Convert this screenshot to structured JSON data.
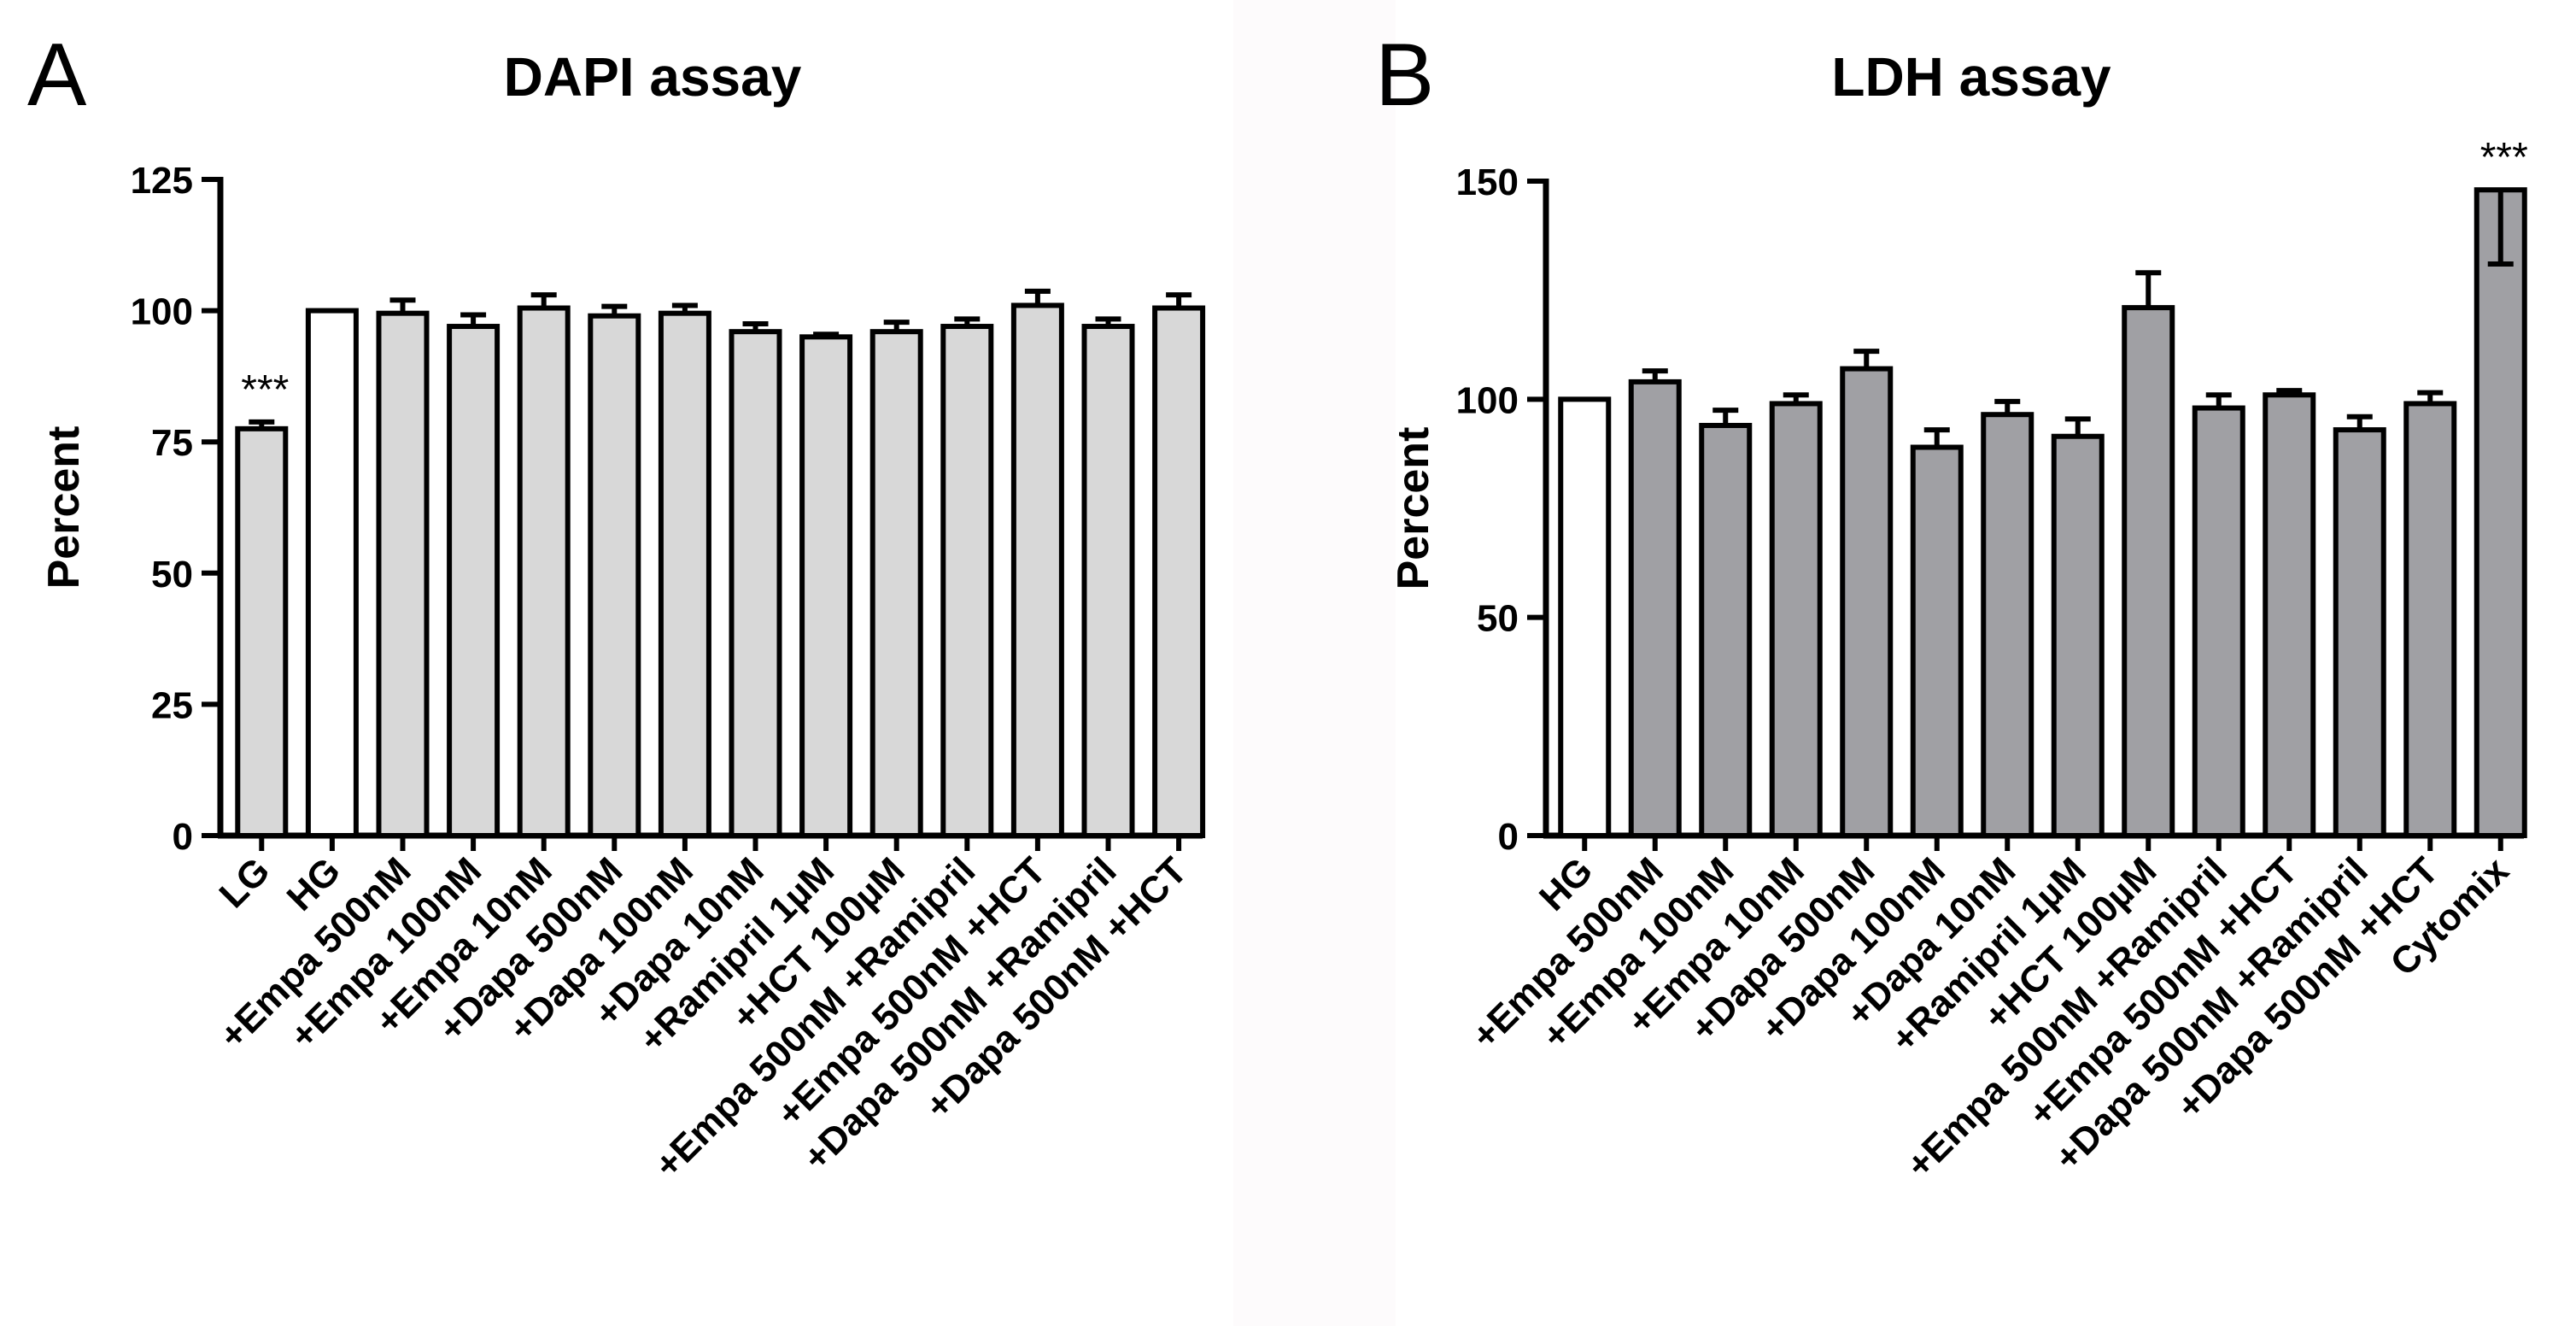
{
  "panels": {
    "a": {
      "letter": "A"
    },
    "b": {
      "letter": "B"
    }
  },
  "colors": {
    "bar_fill_a": "#d8d8d8",
    "bar_fill_b": "#a0a0a4",
    "control_fill": "#ffffff",
    "stroke": "#000000"
  },
  "chart_data": [
    {
      "id": "dapi",
      "type": "bar",
      "title": "DAPI assay",
      "xlabel": "",
      "ylabel": "Percent",
      "ylim": [
        0,
        125
      ],
      "yticks": [
        0,
        25,
        50,
        75,
        100,
        125
      ],
      "grid": false,
      "categories": [
        "LG",
        "HG",
        "+Empa 500nM",
        "+Empa 100nM",
        "+Empa 10nM",
        "+Dapa 500nM",
        "+Dapa 100nM",
        "+Dapa 10nM",
        "+Ramipril 1µM",
        "+HCT 100µM",
        "+Empa 500nM +Ramipril",
        "+Empa 500nM +HCT",
        "+Dapa 500nM +Ramipril",
        "+Dapa 500nM +HCT"
      ],
      "values": [
        77.5,
        100,
        99.5,
        97,
        100.5,
        99,
        99.5,
        96,
        95,
        96,
        97,
        101,
        97,
        100.5
      ],
      "errors": [
        1.3,
        0,
        2.5,
        2.2,
        2.5,
        1.8,
        1.5,
        1.5,
        0.5,
        1.8,
        1.4,
        2.7,
        1.4,
        2.5
      ],
      "control_index": 1,
      "annotations": [
        {
          "category": "LG",
          "text": "***"
        }
      ]
    },
    {
      "id": "ldh",
      "type": "bar",
      "title": "LDH assay",
      "xlabel": "",
      "ylabel": "Percent",
      "ylim": [
        0,
        150
      ],
      "yticks": [
        0,
        50,
        100,
        150
      ],
      "grid": false,
      "categories": [
        "HG",
        "+Empa 500nM",
        "+Empa 100nM",
        "+Empa 10nM",
        "+Dapa 500nM",
        "+Dapa 100nM",
        "+Dapa 10nM",
        "+Ramipril 1µM",
        "+HCT 100µM",
        "+Empa 500nM +Ramipril",
        "+Empa 500nM +HCT",
        "+Dapa 500nM +Ramipril",
        "+Dapa 500nM +HCT",
        "Cytomix"
      ],
      "values": [
        100,
        104,
        94,
        99,
        107,
        89,
        96.5,
        91.5,
        121,
        98,
        101,
        93,
        99,
        148
      ],
      "errors": [
        0,
        2.5,
        3.5,
        2,
        4,
        4,
        3,
        4,
        8,
        3,
        1,
        3,
        2.5,
        17
      ],
      "error_directions": [
        "up",
        "up",
        "up",
        "up",
        "up",
        "up",
        "up",
        "up",
        "up",
        "up",
        "up",
        "up",
        "up",
        "down"
      ],
      "control_index": 0,
      "annotations": [
        {
          "category": "Cytomix",
          "text": "***"
        }
      ]
    }
  ]
}
